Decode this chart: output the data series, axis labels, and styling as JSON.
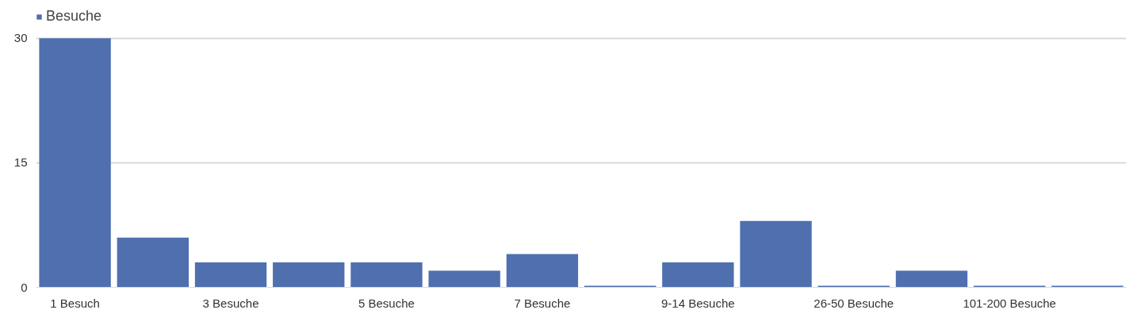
{
  "chart_data": {
    "type": "bar",
    "categories": [
      "1 Besuch",
      null,
      "3 Besuche",
      null,
      "5 Besuche",
      null,
      "7 Besuche",
      null,
      "9-14 Besuche",
      null,
      "26-50 Besuche",
      null,
      "101-200 Besuche",
      null
    ],
    "series": [
      {
        "name": "Besuche",
        "color": "#4f6fae",
        "values": [
          30,
          6,
          3,
          3,
          3,
          2,
          4,
          0.2,
          3,
          8,
          0.2,
          2,
          0.2,
          0.2
        ]
      }
    ],
    "ylim": [
      0,
      30
    ],
    "yticks": [
      0,
      15,
      30
    ],
    "grid": "y",
    "legend": "top left"
  }
}
